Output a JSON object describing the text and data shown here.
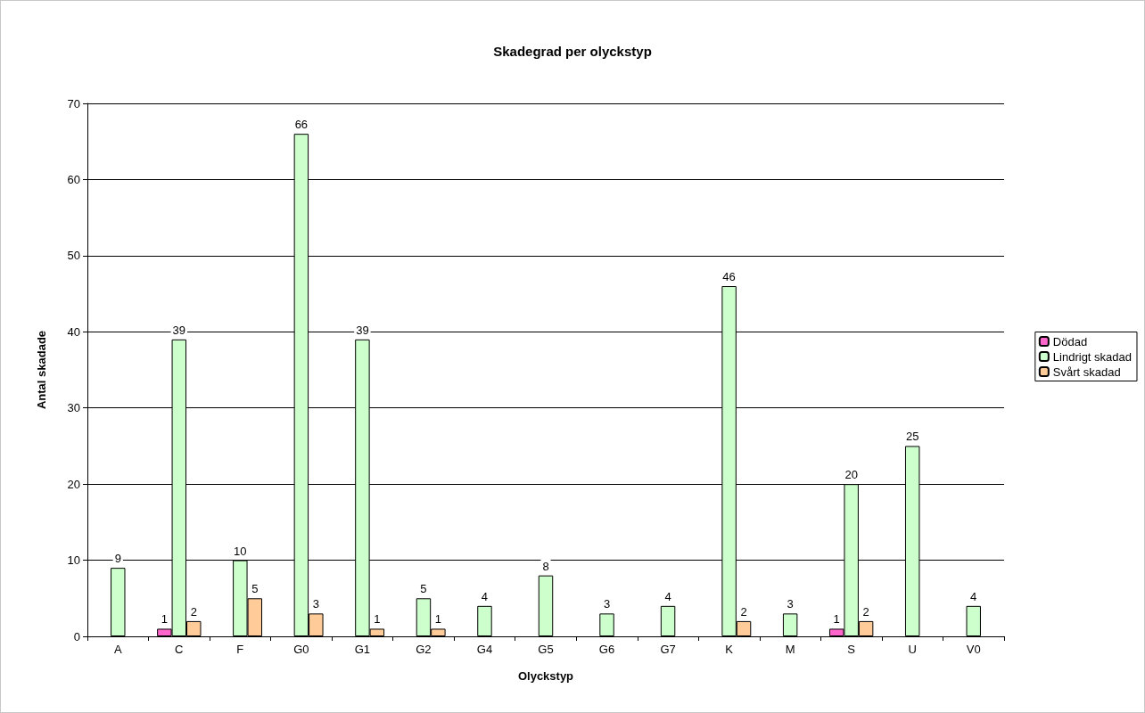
{
  "chart_data": {
    "type": "bar",
    "title": "Skadegrad per olyckstyp",
    "xlabel": "Olyckstyp",
    "ylabel": "Antal skadade",
    "categories": [
      "A",
      "C",
      "F",
      "G0",
      "G1",
      "G2",
      "G4",
      "G5",
      "G6",
      "G7",
      "K",
      "M",
      "S",
      "U",
      "V0"
    ],
    "series": [
      {
        "name": "Dödad",
        "color": "#ff66cc",
        "values": [
          null,
          1,
          null,
          null,
          null,
          null,
          null,
          null,
          null,
          null,
          null,
          null,
          1,
          null,
          null
        ]
      },
      {
        "name": "Lindrigt skadad",
        "color": "#ccffcc",
        "values": [
          9,
          39,
          10,
          66,
          39,
          5,
          4,
          8,
          3,
          4,
          46,
          3,
          20,
          25,
          4
        ]
      },
      {
        "name": "Svårt skadad",
        "color": "#ffcc99",
        "values": [
          null,
          2,
          5,
          3,
          1,
          1,
          null,
          null,
          null,
          null,
          2,
          null,
          2,
          null,
          null
        ]
      }
    ],
    "ylim": [
      0,
      70
    ],
    "yticks": [
      0,
      10,
      20,
      30,
      40,
      50,
      60,
      70
    ],
    "grid": "y",
    "legend": "right",
    "data_labels": true
  }
}
